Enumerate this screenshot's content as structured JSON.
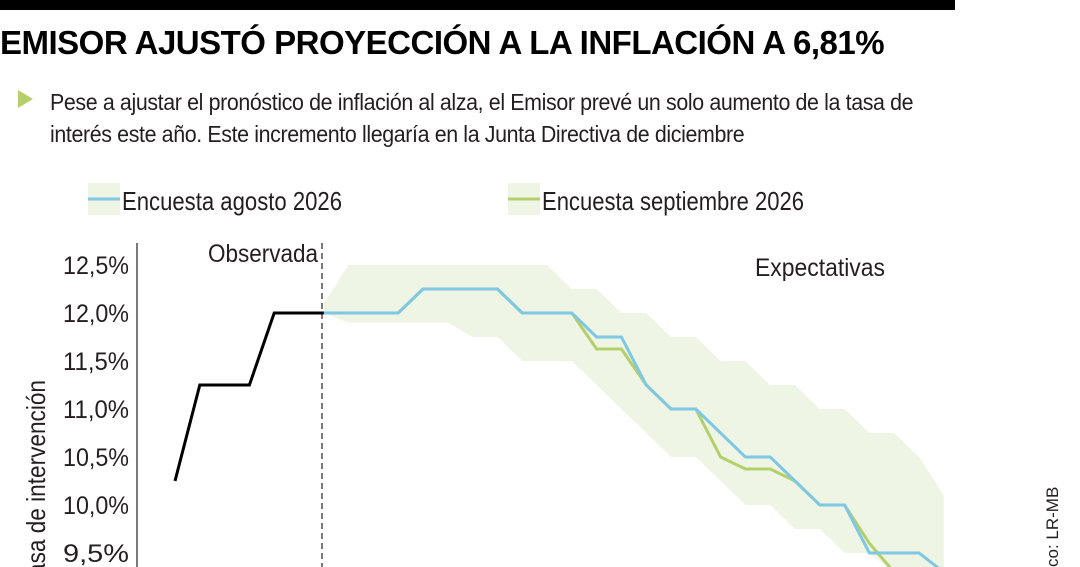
{
  "headline": "EMISOR AJUSTÓ PROYECCIÓN A LA INFLACIÓN A 6,81%",
  "subtitle": "Pese a ajustar el pronóstico de inflación al alza, el Emisor prevé un solo aumento de la tasa de interés este año. Este incremento llegaría en la Junta Directiva de diciembre",
  "source_label": "co: LR-MB",
  "colors": {
    "observed": "#000000",
    "agosto": "#7ec8e3",
    "septiembre": "#b5cf6b",
    "band": "#eef5e4",
    "bullet": "#b5cf6b"
  },
  "chart_data": {
    "type": "line",
    "ylabel": "asa de intervención",
    "y_ticks": [
      "12,5%",
      "12,0%",
      "11,5%",
      "11,0%",
      "10,5%",
      "10,0%",
      "9,5%"
    ],
    "y_tick_values": [
      12.5,
      12.0,
      11.5,
      11.0,
      10.5,
      10.0,
      9.5
    ],
    "ylim": [
      9.4,
      12.8
    ],
    "annotations": {
      "observed": "Observada",
      "expected": "Expectativas"
    },
    "legend_placement": "top",
    "series": [
      {
        "name": "Observada",
        "style": "observed",
        "x": [
          0,
          1,
          2,
          3,
          4,
          5,
          6
        ],
        "y": [
          10.25,
          11.25,
          11.25,
          11.25,
          12.0,
          12.0,
          12.0
        ]
      },
      {
        "name": "Encuesta agosto 2026",
        "style": "agosto",
        "x": [
          6,
          7,
          8,
          9,
          10,
          11,
          12,
          13,
          14,
          15,
          16,
          17,
          18,
          19,
          20,
          21,
          22,
          23,
          24,
          25,
          26,
          27,
          28,
          29,
          30,
          31
        ],
        "y": [
          12.0,
          12.0,
          12.0,
          12.0,
          12.25,
          12.25,
          12.25,
          12.25,
          12.0,
          12.0,
          12.0,
          11.75,
          11.75,
          11.25,
          11.0,
          11.0,
          10.75,
          10.5,
          10.5,
          10.25,
          10.0,
          10.0,
          9.5,
          9.5,
          9.5,
          9.3
        ]
      },
      {
        "name": "Encuesta septiembre 2026",
        "style": "septiembre",
        "x": [
          6,
          7,
          8,
          9,
          10,
          11,
          12,
          13,
          14,
          15,
          16,
          17,
          18,
          19,
          20,
          21,
          22,
          23,
          24,
          25,
          26,
          27,
          28,
          29
        ],
        "y": [
          12.0,
          12.0,
          12.0,
          12.0,
          12.25,
          12.25,
          12.25,
          12.25,
          12.0,
          12.0,
          12.0,
          11.625,
          11.625,
          11.25,
          11.0,
          11.0,
          10.5,
          10.375,
          10.375,
          10.25,
          10.0,
          10.0,
          9.6,
          9.3
        ]
      }
    ],
    "band": {
      "x": [
        6,
        7,
        8,
        9,
        10,
        11,
        12,
        13,
        14,
        15,
        16,
        17,
        18,
        19,
        20,
        21,
        22,
        23,
        24,
        25,
        26,
        27,
        28,
        29,
        30,
        31
      ],
      "upper": [
        12.1,
        12.5,
        12.5,
        12.5,
        12.5,
        12.5,
        12.5,
        12.5,
        12.5,
        12.5,
        12.25,
        12.25,
        12.0,
        12.0,
        11.75,
        11.75,
        11.5,
        11.5,
        11.25,
        11.25,
        11.0,
        11.0,
        10.75,
        10.75,
        10.5,
        10.1
      ],
      "lower": [
        12.0,
        11.9,
        11.9,
        11.9,
        11.9,
        11.9,
        11.75,
        11.75,
        11.5,
        11.5,
        11.5,
        11.25,
        11.0,
        10.75,
        10.5,
        10.5,
        10.25,
        10.0,
        10.0,
        9.75,
        9.75,
        9.5,
        9.5,
        9.3,
        9.3,
        9.3
      ]
    },
    "grid": false
  }
}
